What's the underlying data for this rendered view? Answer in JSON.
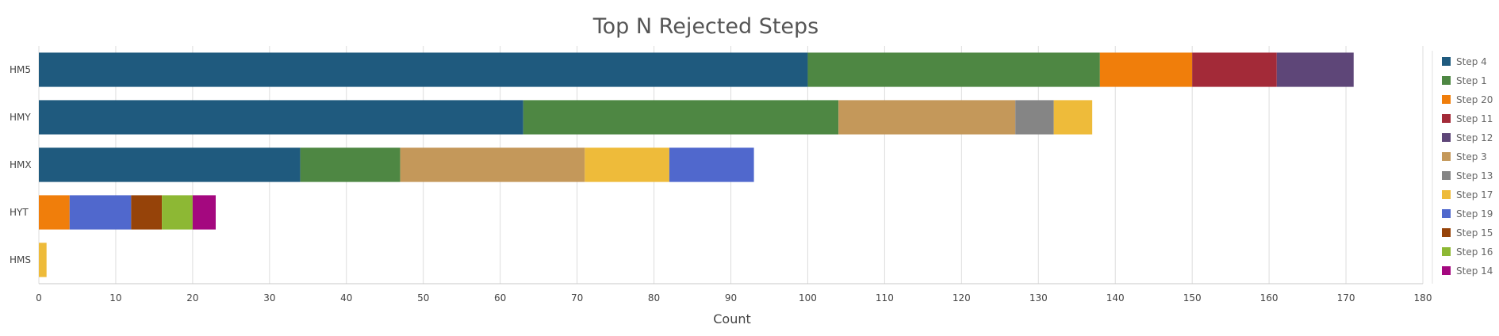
{
  "chart_data": {
    "type": "bar",
    "orientation": "horizontal",
    "stacked": true,
    "title": "Top N Rejected Steps",
    "xlabel": "Count",
    "ylabel": "",
    "xlim": [
      0,
      180
    ],
    "xticks": [
      0,
      10,
      20,
      30,
      40,
      50,
      60,
      70,
      80,
      90,
      100,
      110,
      120,
      130,
      140,
      150,
      160,
      170,
      180
    ],
    "grid": true,
    "legend_position": "right",
    "categories": [
      "HM5",
      "HMY",
      "HMX",
      "HYT",
      "HMS"
    ],
    "series": [
      {
        "name": "Step 4",
        "color": "#1f5a7e",
        "values": [
          100,
          63,
          34,
          0,
          0
        ]
      },
      {
        "name": "Step 1",
        "color": "#4e8743",
        "values": [
          38,
          41,
          13,
          0,
          0
        ]
      },
      {
        "name": "Step 20",
        "color": "#f07e0b",
        "values": [
          12,
          0,
          0,
          4,
          0
        ]
      },
      {
        "name": "Step 11",
        "color": "#a32a38",
        "values": [
          11,
          0,
          0,
          0,
          0
        ]
      },
      {
        "name": "Step 12",
        "color": "#5e4678",
        "values": [
          10,
          0,
          0,
          0,
          0
        ]
      },
      {
        "name": "Step 3",
        "color": "#c4985a",
        "values": [
          0,
          23,
          24,
          0,
          0
        ]
      },
      {
        "name": "Step 13",
        "color": "#858585",
        "values": [
          0,
          5,
          0,
          0,
          0
        ]
      },
      {
        "name": "Step 17",
        "color": "#eebb3a",
        "values": [
          0,
          5,
          11,
          0,
          1
        ]
      },
      {
        "name": "Step 19",
        "color": "#5068cd",
        "values": [
          0,
          0,
          11,
          8,
          0
        ]
      },
      {
        "name": "Step 15",
        "color": "#964309",
        "values": [
          0,
          0,
          0,
          4,
          0
        ]
      },
      {
        "name": "Step 16",
        "color": "#8db834",
        "values": [
          0,
          0,
          0,
          4,
          0
        ]
      },
      {
        "name": "Step 14",
        "color": "#a4087f",
        "values": [
          0,
          0,
          0,
          3,
          0
        ]
      }
    ]
  }
}
